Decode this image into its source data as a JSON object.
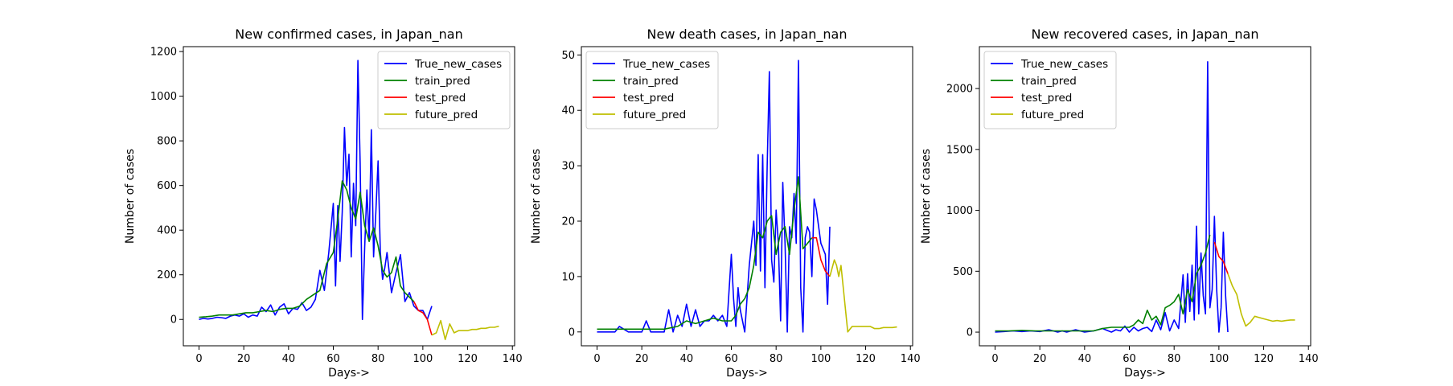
{
  "chart_data": [
    {
      "type": "line",
      "title": "New confirmed cases, in Japan_nan",
      "xlabel": "Days->",
      "ylabel": "Number of cases",
      "xlim": [
        -7,
        141
      ],
      "ylim": [
        -118,
        1222
      ],
      "xticks": [
        0,
        20,
        40,
        60,
        80,
        100,
        120,
        140
      ],
      "yticks": [
        0,
        200,
        400,
        600,
        800,
        1000,
        1200
      ],
      "legend_position": "top-right",
      "series": [
        {
          "name": "True_new_cases",
          "color": "#0000ff",
          "x": [
            0,
            2,
            4,
            6,
            8,
            10,
            12,
            14,
            16,
            18,
            20,
            22,
            24,
            26,
            28,
            30,
            32,
            34,
            36,
            38,
            40,
            42,
            44,
            46,
            48,
            50,
            52,
            54,
            56,
            58,
            60,
            61,
            62,
            63,
            64,
            65,
            66,
            67,
            68,
            69,
            70,
            71,
            72,
            73,
            74,
            75,
            76,
            77,
            78,
            79,
            80,
            81,
            82,
            83,
            84,
            86,
            88,
            90,
            92,
            94,
            96,
            98,
            100,
            102,
            104
          ],
          "y": [
            0,
            5,
            2,
            5,
            10,
            8,
            5,
            15,
            20,
            15,
            25,
            10,
            20,
            15,
            55,
            35,
            65,
            20,
            55,
            70,
            25,
            50,
            45,
            75,
            40,
            55,
            90,
            220,
            130,
            300,
            520,
            150,
            510,
            260,
            480,
            860,
            600,
            740,
            280,
            610,
            420,
            1160,
            700,
            0,
            320,
            580,
            350,
            850,
            280,
            480,
            710,
            300,
            180,
            230,
            300,
            120,
            210,
            290,
            80,
            120,
            60,
            40,
            40,
            0,
            60
          ]
        },
        {
          "name": "train_pred",
          "color": "#008000",
          "x": [
            0,
            3,
            6,
            9,
            12,
            15,
            18,
            21,
            24,
            27,
            30,
            33,
            36,
            39,
            42,
            45,
            48,
            51,
            54,
            57,
            60,
            62,
            64,
            66,
            68,
            70,
            72,
            74,
            76,
            78,
            80,
            82,
            84,
            86,
            88,
            90,
            92,
            94,
            96
          ],
          "y": [
            10,
            12,
            15,
            20,
            20,
            20,
            25,
            30,
            30,
            35,
            40,
            35,
            45,
            50,
            50,
            60,
            90,
            110,
            130,
            250,
            300,
            450,
            620,
            580,
            500,
            450,
            570,
            420,
            350,
            410,
            330,
            220,
            190,
            210,
            280,
            150,
            120,
            100,
            80
          ]
        },
        {
          "name": "test_pred",
          "color": "#ff0000",
          "x": [
            96,
            98,
            100,
            102,
            104
          ],
          "y": [
            80,
            40,
            30,
            0,
            -70
          ]
        },
        {
          "name": "future_pred",
          "color": "#bfbf00",
          "x": [
            104,
            106,
            108,
            110,
            112,
            114,
            116,
            118,
            120,
            122,
            124,
            126,
            128,
            130,
            132,
            134
          ],
          "y": [
            -70,
            -60,
            -5,
            -90,
            -20,
            -60,
            -50,
            -50,
            -50,
            -45,
            -45,
            -40,
            -40,
            -35,
            -35,
            -30
          ]
        }
      ]
    },
    {
      "type": "line",
      "title": "New death cases, in Japan_nan",
      "xlabel": "Days->",
      "ylabel": "Number of cases",
      "xlim": [
        -7,
        141
      ],
      "ylim": [
        -2.5,
        51.5
      ],
      "xticks": [
        0,
        20,
        40,
        60,
        80,
        100,
        120,
        140
      ],
      "yticks": [
        0,
        10,
        20,
        30,
        40,
        50
      ],
      "legend_position": "top-left",
      "series": [
        {
          "name": "True_new_cases",
          "color": "#0000ff",
          "x": [
            0,
            4,
            8,
            10,
            14,
            18,
            20,
            22,
            24,
            30,
            32,
            34,
            36,
            38,
            40,
            42,
            44,
            46,
            48,
            50,
            52,
            54,
            56,
            58,
            60,
            61,
            62,
            63,
            64,
            66,
            68,
            70,
            71,
            72,
            73,
            74,
            75,
            76,
            77,
            78,
            79,
            80,
            81,
            82,
            83,
            84,
            85,
            86,
            87,
            88,
            89,
            90,
            91,
            92,
            93,
            94,
            95,
            96,
            97,
            98,
            100,
            102,
            103,
            104
          ],
          "y": [
            0,
            0,
            0,
            1,
            0,
            0,
            0,
            2,
            0,
            0,
            4,
            0,
            3,
            1,
            5,
            1,
            4,
            1,
            2,
            2,
            3,
            2,
            3,
            1,
            14,
            6,
            1,
            8,
            4,
            0,
            12,
            20,
            12,
            32,
            11,
            32,
            8,
            30,
            47,
            13,
            9,
            22,
            16,
            2,
            27,
            16,
            0,
            19,
            17,
            25,
            16,
            49,
            8,
            0,
            17,
            19,
            18,
            10,
            24,
            22,
            16,
            14,
            5,
            19
          ]
        },
        {
          "name": "train_pred",
          "color": "#008000",
          "x": [
            0,
            6,
            12,
            18,
            24,
            30,
            36,
            40,
            44,
            48,
            52,
            56,
            60,
            62,
            64,
            66,
            68,
            70,
            72,
            74,
            76,
            78,
            80,
            82,
            84,
            86,
            88,
            90,
            92,
            94,
            96
          ],
          "y": [
            0.5,
            0.5,
            0.5,
            0.5,
            0.5,
            0.5,
            1,
            2,
            1.5,
            2,
            2.5,
            2,
            2,
            3,
            5,
            6,
            8,
            12,
            18,
            17,
            20,
            21,
            14,
            18,
            19,
            14,
            22,
            28,
            15,
            16,
            17
          ]
        },
        {
          "name": "test_pred",
          "color": "#ff0000",
          "x": [
            96,
            98,
            100,
            102,
            104
          ],
          "y": [
            17,
            17,
            13,
            11,
            10
          ]
        },
        {
          "name": "future_pred",
          "color": "#bfbf00",
          "x": [
            104,
            106,
            107,
            108,
            109,
            110,
            112,
            114,
            116,
            118,
            120,
            122,
            124,
            126,
            128,
            130,
            132,
            134
          ],
          "y": [
            10,
            13,
            12,
            10,
            12,
            8,
            0,
            1,
            1,
            1,
            1,
            1,
            0.6,
            0.6,
            0.8,
            0.8,
            0.8,
            0.9
          ]
        }
      ]
    },
    {
      "type": "line",
      "title": "New recovered cases, in Japan_nan",
      "xlabel": "Days->",
      "ylabel": "Number of cases",
      "xlim": [
        -7,
        141
      ],
      "ylim": [
        -112,
        2344
      ],
      "xticks": [
        0,
        20,
        40,
        60,
        80,
        100,
        120,
        140
      ],
      "yticks": [
        0,
        500,
        1000,
        1500,
        2000
      ],
      "legend_position": "top-left",
      "series": [
        {
          "name": "True_new_cases",
          "color": "#0000ff",
          "x": [
            0,
            4,
            8,
            12,
            16,
            20,
            24,
            28,
            30,
            32,
            34,
            36,
            40,
            44,
            48,
            52,
            54,
            56,
            58,
            60,
            62,
            64,
            66,
            68,
            70,
            72,
            74,
            76,
            78,
            80,
            82,
            84,
            85,
            86,
            87,
            88,
            89,
            90,
            91,
            92,
            93,
            94,
            95,
            96,
            97,
            98,
            99,
            100,
            101,
            102,
            103,
            104
          ],
          "y": [
            0,
            5,
            10,
            5,
            10,
            5,
            20,
            0,
            10,
            0,
            10,
            20,
            0,
            10,
            30,
            0,
            20,
            10,
            50,
            0,
            40,
            10,
            30,
            40,
            5,
            100,
            20,
            160,
            10,
            100,
            30,
            470,
            80,
            480,
            170,
            550,
            100,
            870,
            150,
            650,
            300,
            150,
            2220,
            200,
            350,
            950,
            350,
            0,
            200,
            820,
            300,
            0
          ]
        },
        {
          "name": "train_pred",
          "color": "#008000",
          "x": [
            0,
            6,
            12,
            18,
            24,
            30,
            36,
            40,
            44,
            48,
            52,
            56,
            60,
            62,
            64,
            66,
            68,
            70,
            72,
            74,
            76,
            78,
            80,
            82,
            84,
            86,
            88,
            90,
            92,
            94,
            96
          ],
          "y": [
            10,
            10,
            15,
            10,
            10,
            10,
            10,
            10,
            10,
            30,
            40,
            40,
            40,
            60,
            100,
            70,
            180,
            100,
            130,
            60,
            200,
            220,
            250,
            310,
            150,
            350,
            250,
            480,
            550,
            650,
            800
          ]
        },
        {
          "name": "test_pred",
          "color": "#ff0000",
          "x": [
            98,
            100,
            102,
            104
          ],
          "y": [
            740,
            620,
            580,
            480
          ]
        },
        {
          "name": "future_pred",
          "color": "#bfbf00",
          "x": [
            104,
            106,
            108,
            110,
            112,
            114,
            116,
            118,
            120,
            122,
            124,
            126,
            128,
            130,
            132,
            134
          ],
          "y": [
            480,
            380,
            310,
            150,
            50,
            80,
            130,
            120,
            110,
            100,
            90,
            95,
            90,
            95,
            100,
            100
          ]
        }
      ]
    }
  ]
}
